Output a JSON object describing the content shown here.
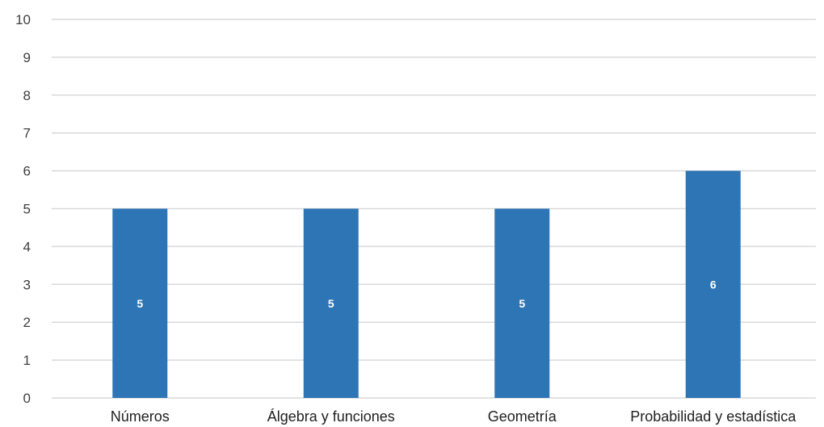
{
  "chart_data": {
    "type": "bar",
    "title": "",
    "xlabel": "",
    "ylabel": "",
    "categories": [
      "Números",
      "Álgebra y funciones",
      "Geometría",
      "Probabilidad y estadística"
    ],
    "values": [
      5,
      5,
      5,
      6
    ],
    "data_labels": [
      "5",
      "5",
      "5",
      "6"
    ],
    "ylim": [
      0,
      10
    ],
    "yticks": [
      "0",
      "1",
      "2",
      "3",
      "4",
      "5",
      "6",
      "7",
      "8",
      "9",
      "10"
    ],
    "grid": true,
    "legend": false,
    "colors": {
      "bar": "#2e75b6",
      "grid": "#d9d9d9",
      "data_label": "#ffffff"
    }
  }
}
